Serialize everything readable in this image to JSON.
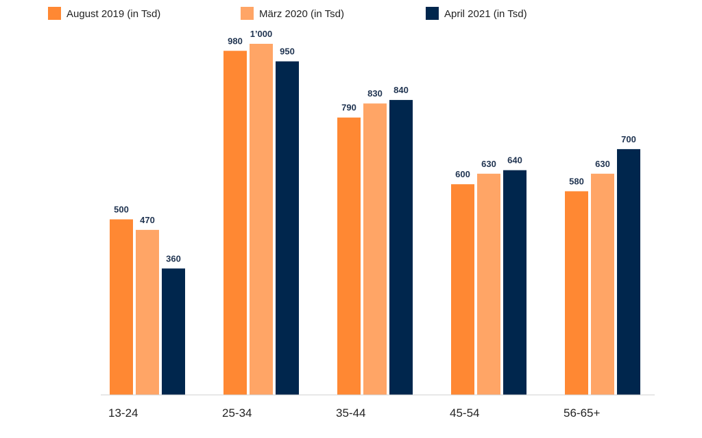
{
  "chart_data": {
    "type": "bar",
    "categories": [
      "13-24",
      "25-34",
      "35-44",
      "45-54",
      "56-65+"
    ],
    "series": [
      {
        "name": "August 2019 (in Tsd)",
        "color": "#ff8833",
        "values": [
          500,
          980,
          790,
          600,
          580
        ],
        "labels": [
          "500",
          "980",
          "790",
          "600",
          "580"
        ]
      },
      {
        "name": "März 2020 (in Tsd)",
        "color": "#ffa566",
        "values": [
          470,
          1000,
          830,
          630,
          630
        ],
        "labels": [
          "470",
          "1’000",
          "830",
          "630",
          "630"
        ]
      },
      {
        "name": "April 2021 (in Tsd)",
        "color": "#00264d",
        "values": [
          360,
          950,
          840,
          640,
          700
        ],
        "labels": [
          "360",
          "950",
          "840",
          "640",
          "700"
        ]
      }
    ],
    "title": "",
    "xlabel": "",
    "ylabel": "",
    "ylim": [
      0,
      1000
    ],
    "grid": false,
    "legend": "top-left"
  }
}
